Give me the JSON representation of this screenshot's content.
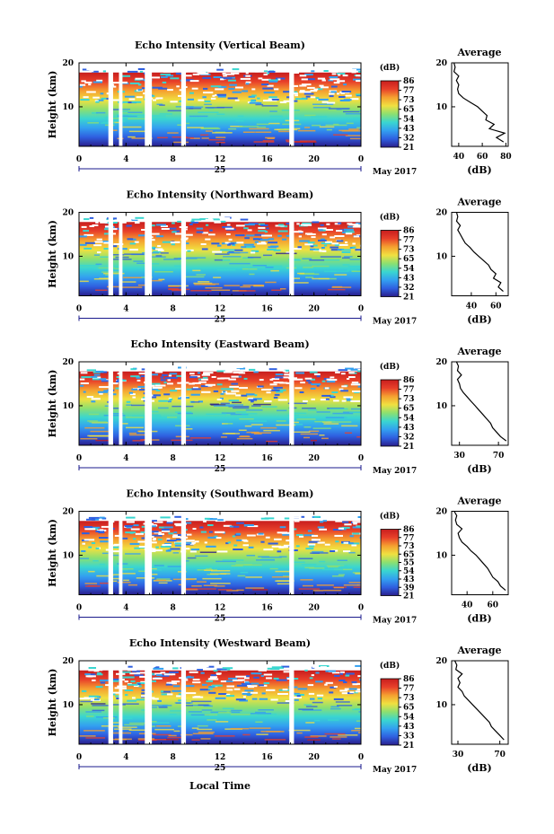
{
  "figure": {
    "local_time_label": "Local Time",
    "height_label": "Height (km)",
    "month_label": "May 2017",
    "day_label": "25",
    "avg_title": "Average",
    "avg_xlabel": "(dB)",
    "cbar_unit": "(dB)",
    "colorscale": [
      "#2a1e8c",
      "#2f5fe0",
      "#33a0f0",
      "#3ad6d0",
      "#8ce070",
      "#f0e040",
      "#f5a030",
      "#e8402a",
      "#c81e1e"
    ],
    "no_data_color": "#ffffff"
  },
  "chart_data": [
    {
      "type": "heatmap",
      "title": "Echo Intensity (Vertical Beam)",
      "beam": "vertical",
      "x_ticks": [
        "0",
        "4",
        "8",
        "12",
        "16",
        "20",
        "0"
      ],
      "xlim": [
        0,
        24
      ],
      "y_ticks": [
        "20",
        "10"
      ],
      "ylim": [
        1,
        20
      ],
      "colorbar_ticks": [
        "86",
        "77",
        "73",
        "65",
        "54",
        "43",
        "32",
        "21"
      ],
      "data_gaps_hours": [
        [
          2.5,
          2.9
        ],
        [
          3.4,
          3.7
        ],
        [
          5.6,
          6.2
        ],
        [
          8.7,
          9.1
        ],
        [
          17.9,
          18.3
        ]
      ],
      "average_profile": {
        "x_ticks": [
          "40",
          "60",
          "80"
        ],
        "xlim": [
          34,
          82
        ],
        "height_km": [
          2,
          3,
          4,
          5,
          6,
          7,
          8,
          9,
          10,
          11,
          12,
          13,
          14,
          15,
          16,
          17,
          18,
          19,
          20
        ],
        "db": [
          78,
          72,
          79,
          66,
          70,
          63,
          64,
          60,
          56,
          50,
          44,
          40,
          39,
          40,
          38,
          40,
          36,
          37,
          36
        ]
      }
    },
    {
      "type": "heatmap",
      "title": "Echo Intensity (Northward Beam)",
      "beam": "northward",
      "x_ticks": [
        "0",
        "4",
        "8",
        "12",
        "16",
        "20",
        "0"
      ],
      "xlim": [
        0,
        24
      ],
      "y_ticks": [
        "20",
        "10"
      ],
      "ylim": [
        1,
        20
      ],
      "colorbar_ticks": [
        "86",
        "77",
        "73",
        "65",
        "54",
        "43",
        "32",
        "21"
      ],
      "data_gaps_hours": [
        [
          2.5,
          2.9
        ],
        [
          3.4,
          3.7
        ],
        [
          5.6,
          6.2
        ],
        [
          8.7,
          9.1
        ],
        [
          17.9,
          18.3
        ]
      ],
      "average_profile": {
        "x_ticks": [
          "40",
          "60"
        ],
        "xlim": [
          24,
          70
        ],
        "height_km": [
          2,
          3,
          4,
          5,
          6,
          7,
          8,
          9,
          10,
          11,
          12,
          13,
          14,
          15,
          16,
          17,
          18,
          19,
          20
        ],
        "db": [
          66,
          62,
          64,
          58,
          60,
          56,
          54,
          50,
          46,
          42,
          39,
          35,
          33,
          31,
          29,
          31,
          28,
          29,
          28
        ]
      }
    },
    {
      "type": "heatmap",
      "title": "Echo Intensity (Eastward Beam)",
      "beam": "eastward",
      "x_ticks": [
        "0",
        "4",
        "8",
        "12",
        "16",
        "20",
        "0"
      ],
      "xlim": [
        0,
        24
      ],
      "y_ticks": [
        "20",
        "10"
      ],
      "ylim": [
        1,
        20
      ],
      "colorbar_ticks": [
        "86",
        "77",
        "73",
        "65",
        "54",
        "43",
        "32",
        "21"
      ],
      "data_gaps_hours": [
        [
          2.5,
          2.9
        ],
        [
          3.4,
          3.7
        ],
        [
          5.6,
          6.2
        ],
        [
          8.7,
          9.1
        ],
        [
          17.9,
          18.3
        ]
      ],
      "average_profile": {
        "x_ticks": [
          "30",
          "70"
        ],
        "xlim": [
          22,
          80
        ],
        "height_km": [
          2,
          3,
          4,
          5,
          6,
          7,
          8,
          9,
          10,
          11,
          12,
          13,
          14,
          15,
          16,
          17,
          18,
          19,
          20
        ],
        "db": [
          78,
          72,
          68,
          64,
          62,
          58,
          54,
          50,
          46,
          42,
          38,
          34,
          31,
          30,
          28,
          32,
          28,
          29,
          27
        ]
      }
    },
    {
      "type": "heatmap",
      "title": "Echo Intensity (Southward Beam)",
      "beam": "southward",
      "x_ticks": [
        "0",
        "4",
        "8",
        "12",
        "16",
        "20",
        "0"
      ],
      "xlim": [
        0,
        24
      ],
      "y_ticks": [
        "20",
        "10"
      ],
      "ylim": [
        1,
        20
      ],
      "colorbar_ticks": [
        "86",
        "77",
        "73",
        "65",
        "55",
        "54",
        "43",
        "39",
        "21"
      ],
      "data_gaps_hours": [
        [
          2.5,
          2.9
        ],
        [
          3.4,
          3.7
        ],
        [
          5.6,
          6.2
        ],
        [
          8.7,
          9.1
        ],
        [
          17.9,
          18.3
        ]
      ],
      "average_profile": {
        "x_ticks": [
          "40",
          "60"
        ],
        "xlim": [
          28,
          72
        ],
        "height_km": [
          2,
          3,
          4,
          5,
          6,
          7,
          8,
          9,
          10,
          11,
          12,
          13,
          14,
          15,
          16,
          17,
          18,
          19,
          20
        ],
        "db": [
          70,
          66,
          64,
          60,
          58,
          56,
          53,
          50,
          47,
          43,
          40,
          36,
          34,
          33,
          36,
          32,
          31,
          32,
          30
        ]
      }
    },
    {
      "type": "heatmap",
      "title": "Echo Intensity (Westward Beam)",
      "beam": "westward",
      "x_ticks": [
        "0",
        "4",
        "8",
        "12",
        "16",
        "20",
        "0"
      ],
      "xlim": [
        0,
        24
      ],
      "y_ticks": [
        "20",
        "10"
      ],
      "ylim": [
        1,
        20
      ],
      "colorbar_ticks": [
        "86",
        "77",
        "73",
        "65",
        "54",
        "43",
        "33",
        "21"
      ],
      "data_gaps_hours": [
        [
          2.5,
          2.9
        ],
        [
          3.4,
          3.7
        ],
        [
          5.6,
          6.2
        ],
        [
          8.7,
          9.1
        ],
        [
          17.9,
          18.3
        ]
      ],
      "average_profile": {
        "x_ticks": [
          "30",
          "70"
        ],
        "xlim": [
          24,
          78
        ],
        "height_km": [
          2,
          3,
          4,
          5,
          6,
          7,
          8,
          9,
          10,
          11,
          12,
          13,
          14,
          15,
          16,
          17,
          18,
          19,
          20
        ],
        "db": [
          74,
          70,
          66,
          62,
          60,
          56,
          52,
          48,
          44,
          40,
          36,
          34,
          30,
          32,
          30,
          34,
          28,
          29,
          27
        ]
      }
    }
  ]
}
